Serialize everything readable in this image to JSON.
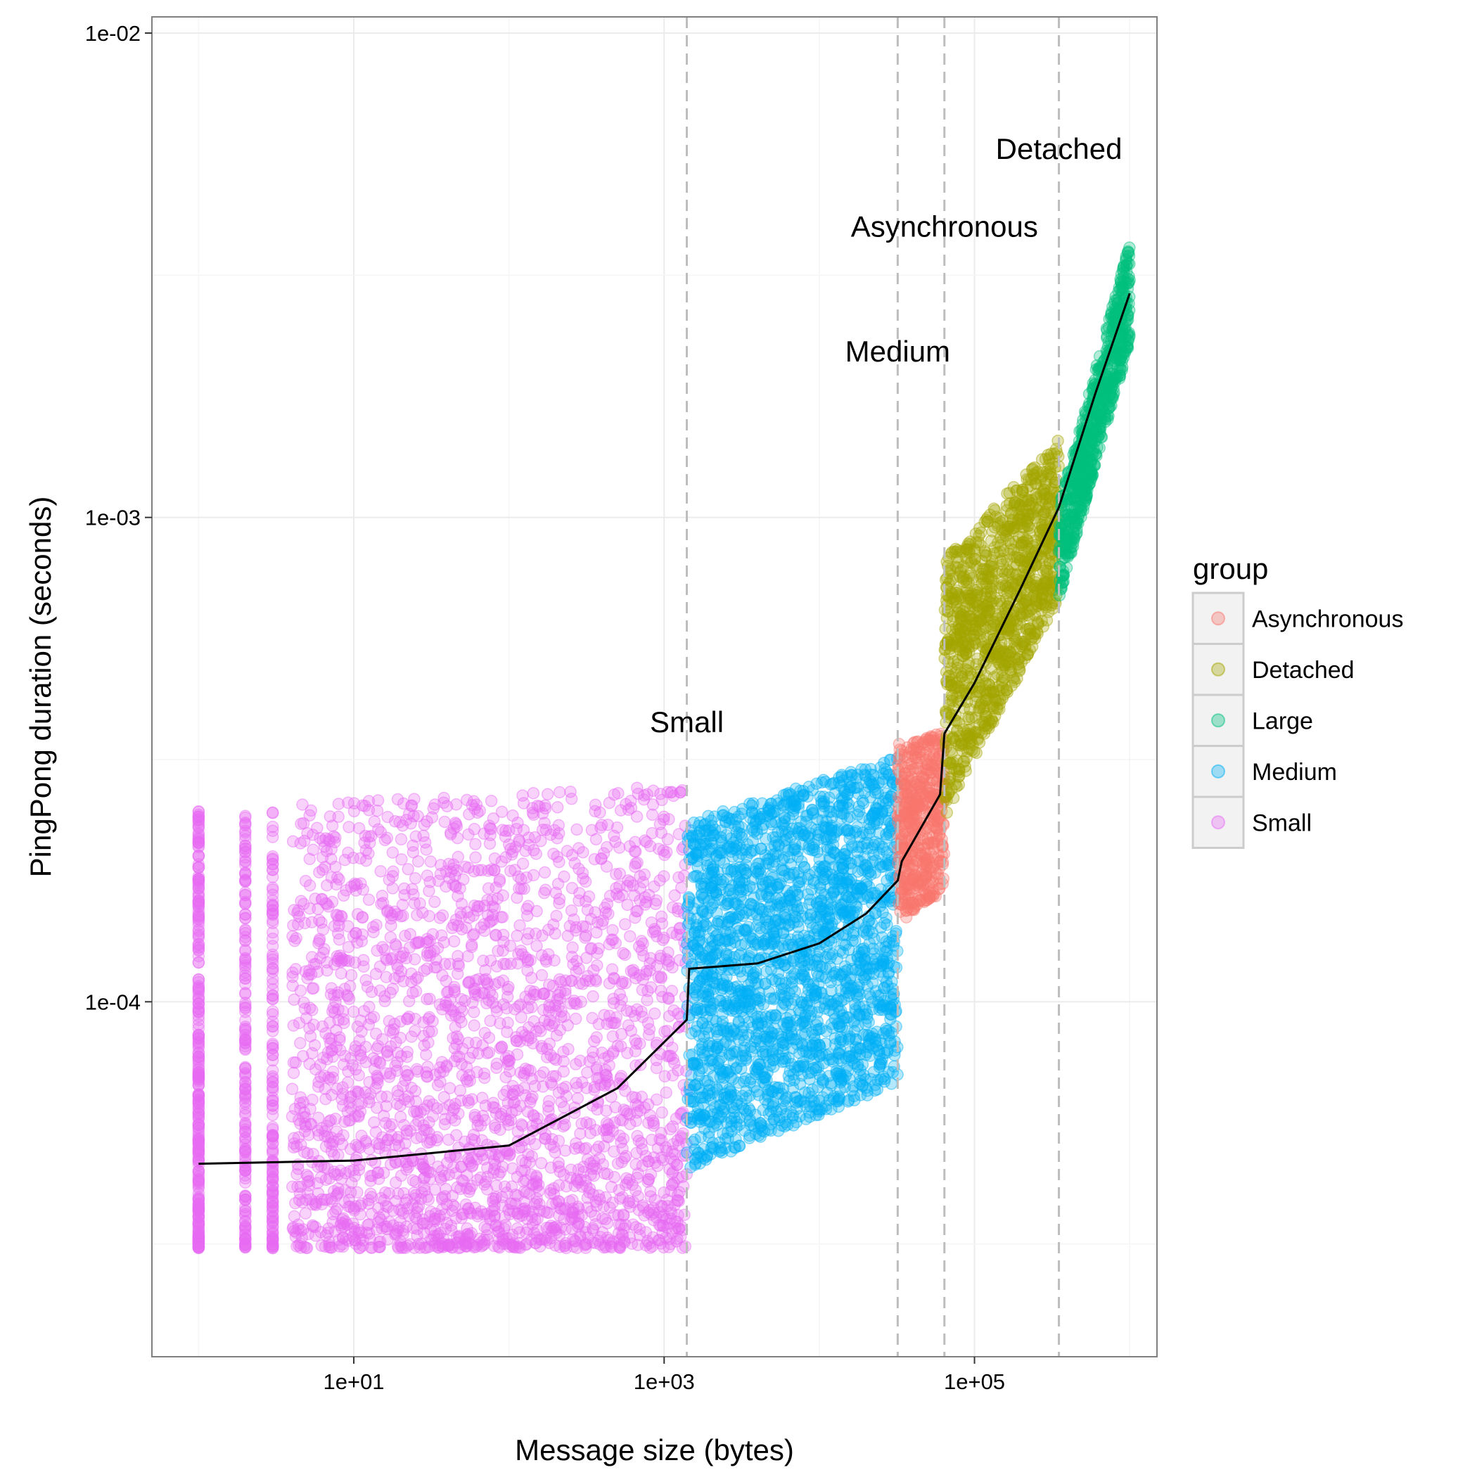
{
  "chart_data": {
    "type": "scatter",
    "xlabel": "Message size (bytes)",
    "ylabel": "PingPong duration (seconds)",
    "x_scale": "log10",
    "y_scale": "log10",
    "xlim": [
      0.5,
      1500000
    ],
    "ylim": [
      1.85e-05,
      0.0108
    ],
    "x_ticks": [
      10,
      1000,
      100000
    ],
    "x_tick_labels": [
      "1e+01",
      "1e+03",
      "1e+05"
    ],
    "y_ticks": [
      0.0001,
      0.001,
      0.01
    ],
    "y_tick_labels": [
      "1e-04",
      "1e-03",
      "1e-02"
    ],
    "grid": true,
    "legend": {
      "title": "group",
      "position": "right",
      "entries": [
        "Asynchronous",
        "Detached",
        "Large",
        "Medium",
        "Small"
      ]
    },
    "colors": {
      "Asynchronous": "#F8766D",
      "Detached": "#A3A500",
      "Large": "#00BF7D",
      "Medium": "#00B0F6",
      "Small": "#E76BF3"
    },
    "thresholds": [
      1400,
      32000,
      64000,
      350000
    ],
    "annotations": [
      {
        "text": "Small",
        "x": 1400,
        "y": 0.00036
      },
      {
        "text": "Medium",
        "x": 32000,
        "y": 0.0021
      },
      {
        "text": "Asynchronous",
        "x": 64000,
        "y": 0.0038
      },
      {
        "text": "Detached",
        "x": 350000,
        "y": 0.0055
      }
    ],
    "series": [
      {
        "name": "Small",
        "x_range": [
          1,
          1400
        ],
        "y_min": [
          3.1e-05,
          3.1e-05
        ],
        "y_max": [
          0.00025,
          0.00028
        ]
      },
      {
        "name": "Medium",
        "x_range": [
          1400,
          32000
        ],
        "y_min": [
          4.5e-05,
          6.8e-05
        ],
        "y_max": [
          0.000235,
          0.00032
        ]
      },
      {
        "name": "Asynchronous",
        "x_range": [
          32000,
          64000
        ],
        "y_min": [
          0.000145,
          0.00017
        ],
        "y_max": [
          0.00034,
          0.00036
        ]
      },
      {
        "name": "Detached",
        "x_range": [
          64000,
          350000
        ],
        "y_min": [
          0.00024,
          0.00068
        ],
        "y_max": [
          0.00082,
          0.00145
        ]
      },
      {
        "name": "Large",
        "x_range": [
          350000,
          1000000
        ],
        "y_min": [
          0.00068,
          0.0023
        ],
        "y_max": [
          0.00105,
          0.0037
        ]
      }
    ],
    "fit_line": {
      "color": "#000000",
      "points": [
        [
          1,
          4.63e-05
        ],
        [
          10,
          4.7e-05
        ],
        [
          100,
          5.05e-05
        ],
        [
          500,
          6.63e-05
        ],
        [
          1400,
          9.18e-05
        ],
        [
          1450,
          0.000117
        ],
        [
          4000,
          0.00012
        ],
        [
          10000,
          0.000132
        ],
        [
          20000,
          0.000152
        ],
        [
          32000,
          0.000178
        ],
        [
          34000,
          0.000195
        ],
        [
          60000,
          0.000268
        ],
        [
          64000,
          0.000358
        ],
        [
          100000,
          0.000455
        ],
        [
          200000,
          0.000717
        ],
        [
          350000,
          0.00105
        ],
        [
          600000,
          0.0018
        ],
        [
          1000000,
          0.0029
        ]
      ]
    }
  }
}
